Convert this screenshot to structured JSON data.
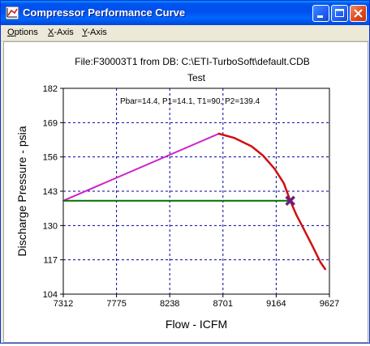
{
  "window": {
    "title": "Compressor Performance Curve"
  },
  "menu": {
    "options": {
      "first": "O",
      "rest": "ptions"
    },
    "x_axis": {
      "first": "X",
      "rest": "-Axis"
    },
    "y_axis": {
      "first": "Y",
      "rest": "-Axis"
    }
  },
  "plot": {
    "file_line": "File:F30003T1 from DB: C:\\ETI-TurboSoft\\default.CDB",
    "chart_title": "Test",
    "conditions": "Pbar=14.4, P1=14.1, T1=90, P2=139.4"
  },
  "chart_data": {
    "type": "line",
    "xlabel": "Flow - ICFM",
    "ylabel": "Discharge Pressure - psia",
    "xlim": [
      7312,
      9627
    ],
    "ylim": [
      104,
      182
    ],
    "x_ticks": [
      "7312",
      "7775",
      "8238",
      "8701",
      "9164",
      "9627"
    ],
    "y_ticks": [
      "104",
      "117",
      "130",
      "143",
      "156",
      "169",
      "182"
    ],
    "grid": true,
    "grid_style": "dashed",
    "colors": {
      "surge_line": "#cc22cc",
      "operating_line": "#007000",
      "performance_curve": "#d01010",
      "operating_point": "#6a1f7a",
      "grid": "#0000a0"
    },
    "series": [
      {
        "points": [
          [
            7312,
            139.4
          ],
          [
            8665,
            164.8
          ]
        ]
      },
      {
        "points": [
          [
            7312,
            139.4
          ],
          [
            9286,
            139.4
          ]
        ]
      },
      {
        "points": [
          [
            8665,
            164.8
          ],
          [
            8800,
            163.2
          ],
          [
            8950,
            160.0
          ],
          [
            9050,
            156.5
          ],
          [
            9150,
            151.5
          ],
          [
            9230,
            146.0
          ],
          [
            9286,
            139.4
          ],
          [
            9340,
            134.0
          ],
          [
            9400,
            129.0
          ],
          [
            9470,
            123.0
          ],
          [
            9550,
            116.0
          ],
          [
            9590,
            113.5
          ]
        ]
      }
    ],
    "operating_point": [
      9286,
      139.4
    ]
  }
}
